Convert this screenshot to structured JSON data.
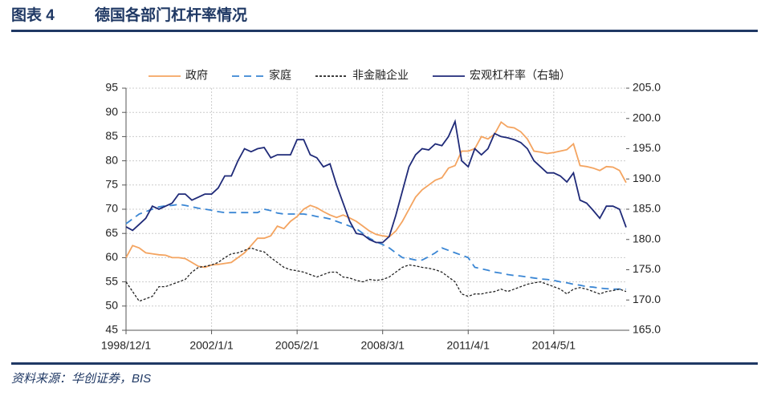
{
  "header": {
    "label": "图表 4",
    "title": "德国各部门杠杆率情况"
  },
  "footer": {
    "source": "资料来源：华创证券，BIS"
  },
  "chart_data": {
    "type": "line",
    "categories": [
      "1998/12/1",
      null,
      null,
      null,
      null,
      null,
      null,
      null,
      null,
      null,
      null,
      null,
      null,
      "2002/1/1",
      null,
      null,
      null,
      null,
      null,
      null,
      null,
      null,
      null,
      null,
      null,
      null,
      "2005/2/1",
      null,
      null,
      null,
      null,
      null,
      null,
      null,
      null,
      null,
      null,
      null,
      null,
      "2008/3/1",
      null,
      null,
      null,
      null,
      null,
      null,
      null,
      null,
      null,
      null,
      null,
      null,
      "2011/4/1",
      null,
      null,
      null,
      null,
      null,
      null,
      null,
      null,
      null,
      null,
      null,
      null,
      "2014/5/1",
      null,
      null,
      null,
      null,
      null,
      null,
      null,
      null,
      null,
      null,
      null
    ],
    "ylim": [
      45,
      95
    ],
    "yticks": [
      45,
      50,
      55,
      60,
      65,
      70,
      75,
      80,
      85,
      90,
      95
    ],
    "y2lim": [
      165,
      205
    ],
    "y2ticks": [
      {
        "value": 165,
        "label": "165.0"
      },
      {
        "value": 170,
        "label": "170.0"
      },
      {
        "value": 175,
        "label": "175.0"
      },
      {
        "value": 180,
        "label": "180.0"
      },
      {
        "value": 185,
        "label": "185.0"
      },
      {
        "value": 190,
        "label": "190.0"
      },
      {
        "value": 195,
        "label": "195.0"
      },
      {
        "value": 200,
        "label": "200.0"
      },
      {
        "value": 205,
        "label": "205.0"
      }
    ],
    "grid": true,
    "legend": "top",
    "series": [
      {
        "name": "政府",
        "color": "#f4a460",
        "style": "solid",
        "values": [
          60,
          62.5,
          62,
          61,
          60.8,
          60.6,
          60.5,
          60,
          60,
          59.8,
          59,
          58.2,
          58,
          58.5,
          58.6,
          58.8,
          59,
          60,
          61,
          62.5,
          64,
          64,
          64.5,
          66.5,
          66,
          67.5,
          68.5,
          70,
          70.8,
          70.3,
          69.5,
          68.8,
          68.3,
          68.8,
          68.2,
          67.5,
          66.5,
          65.5,
          64.8,
          64.5,
          64.3,
          65.5,
          67.5,
          70,
          72.5,
          74,
          75,
          76,
          76.5,
          78.5,
          79,
          82,
          82,
          82.5,
          85,
          84.5,
          85.5,
          88,
          87,
          86.8,
          86,
          84.5,
          82,
          81.8,
          81.5,
          81.7,
          82,
          82.3,
          83.5,
          79,
          78.8,
          78.5,
          78,
          78.8,
          78.7,
          78,
          75.5
        ]
      },
      {
        "name": "家庭",
        "color": "#3a86d4",
        "style": "dashed",
        "values": [
          67,
          68,
          69,
          69.5,
          70,
          70.5,
          70.7,
          70.8,
          71,
          70.8,
          70.5,
          70.2,
          70,
          69.8,
          69.5,
          69.3,
          69.3,
          69.3,
          69.3,
          69.3,
          69.3,
          70,
          69.7,
          69.2,
          69,
          69,
          69,
          69,
          68.8,
          68.5,
          68.3,
          68,
          67.5,
          67,
          66.5,
          66,
          65,
          64,
          63.3,
          62.7,
          62,
          61,
          60,
          59.8,
          59.5,
          59.5,
          60.2,
          61,
          62,
          61.5,
          61,
          60.5,
          60,
          58,
          57.7,
          57.4,
          57,
          56.8,
          56.5,
          56.3,
          56.2,
          56,
          55.8,
          55.6,
          55.5,
          55.3,
          55,
          54.8,
          54.5,
          54.3,
          54,
          53.9,
          53.7,
          53.6,
          53.5,
          53.5,
          53.5
        ]
      },
      {
        "name": "非金融企业",
        "color": "#222222",
        "style": "dotted",
        "values": [
          55,
          53,
          51,
          51.5,
          52,
          54,
          54,
          54.5,
          55,
          55.5,
          57,
          58,
          58.2,
          58.5,
          59,
          60,
          60.8,
          61,
          61.5,
          62,
          61.5,
          61.2,
          60,
          59,
          58,
          57.5,
          57.3,
          57,
          56.5,
          56,
          56.5,
          57,
          57,
          56,
          55.8,
          55.3,
          55,
          55.5,
          55.3,
          55.5,
          56,
          57,
          58,
          58.5,
          58.3,
          58,
          57.8,
          57.5,
          57,
          56,
          55,
          52.5,
          52,
          52.5,
          52.5,
          52.8,
          53,
          53.5,
          53,
          53.5,
          54,
          54.5,
          54.8,
          55,
          54.5,
          54,
          53.5,
          52.5,
          53.5,
          53.8,
          53.5,
          53,
          52.5,
          53,
          53.2,
          53.5,
          53
        ]
      },
      {
        "name": "宏观杠杆率（右轴）",
        "color": "#1f2a78",
        "style": "solid",
        "axis": "y2",
        "values": [
          182.1,
          181.5,
          182.5,
          183.5,
          185.5,
          185,
          185.5,
          186,
          187.5,
          187.5,
          186.5,
          187,
          187.5,
          187.5,
          188.5,
          190.5,
          190.5,
          193,
          195,
          194.5,
          195,
          195.2,
          193.5,
          194,
          194,
          194,
          196.5,
          196.5,
          194,
          193.5,
          192,
          192.5,
          189,
          186,
          183,
          181,
          180.8,
          180,
          179.5,
          179.5,
          180.5,
          184,
          188,
          192,
          194,
          195,
          194.8,
          195.8,
          195.5,
          197,
          199.5,
          193,
          192,
          195,
          194,
          195,
          197.5,
          197,
          196.8,
          196.5,
          196,
          195,
          193,
          192,
          191,
          191,
          190.5,
          189.5,
          191,
          186.5,
          186,
          184.8,
          183.5,
          185.5,
          185.5,
          185,
          182
        ]
      }
    ]
  }
}
